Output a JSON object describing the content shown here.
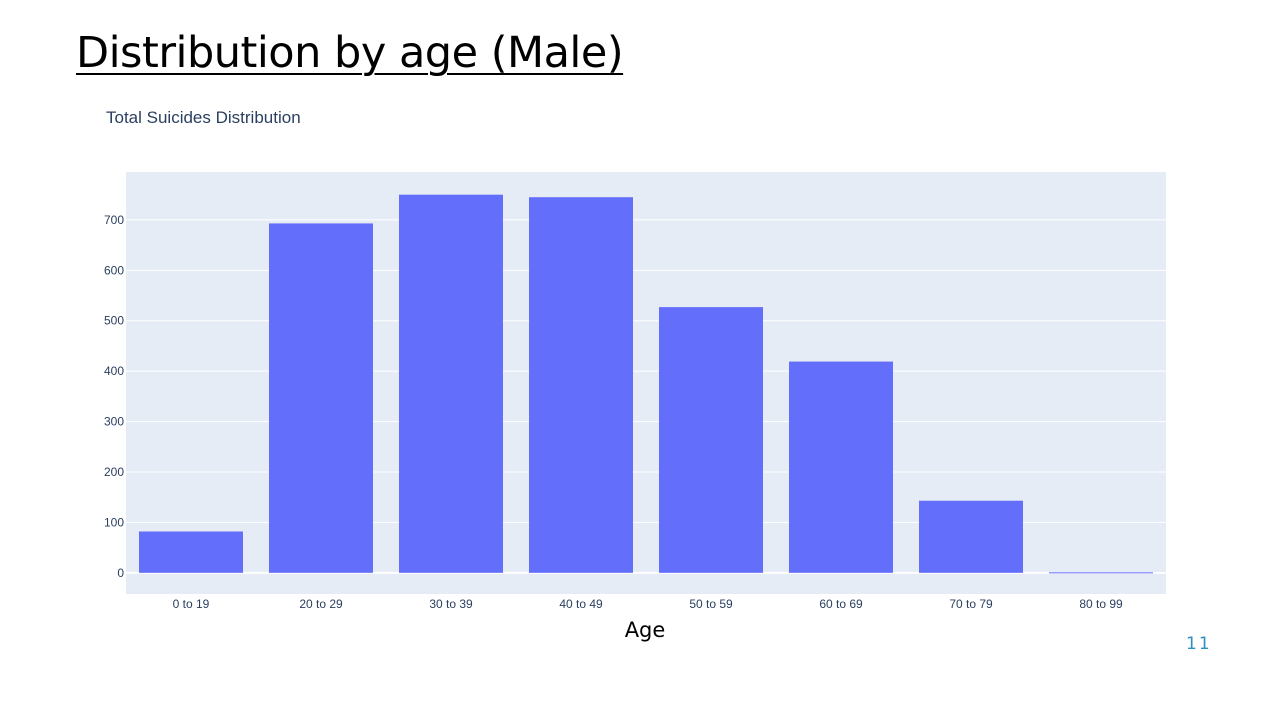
{
  "slide": {
    "title": "Distribution by age (Male)",
    "page_number": "11"
  },
  "chart_data": {
    "type": "bar",
    "title": "Total Suicides Distribution",
    "xlabel": "Age",
    "ylabel": "",
    "categories": [
      "0 to 19",
      "20 to 29",
      "30 to 39",
      "40 to 49",
      "50 to 59",
      "60 to 69",
      "70 to 79",
      "80 to 99"
    ],
    "values": [
      82,
      693,
      750,
      745,
      527,
      419,
      143,
      1
    ],
    "ylim": [
      -42,
      795
    ],
    "yticks": [
      0,
      100,
      200,
      300,
      400,
      500,
      600,
      700
    ],
    "grid": true,
    "colors": {
      "bar": "#636efa",
      "plot_bg": "#e5ecf6",
      "grid": "#ffffff",
      "tick_text": "#2a3f5f"
    }
  }
}
